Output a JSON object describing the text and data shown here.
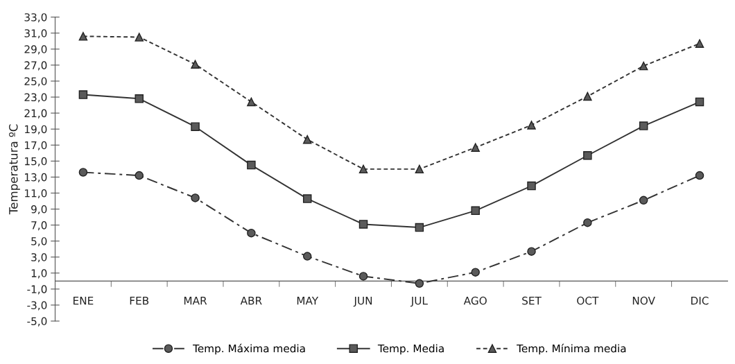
{
  "chart_data": {
    "type": "line",
    "ylabel": "Temperatura ºC",
    "categories": [
      "ENE",
      "FEB",
      "MAR",
      "ABR",
      "MAY",
      "JUN",
      "JUL",
      "AGO",
      "SET",
      "OCT",
      "NOV",
      "DIC"
    ],
    "series": [
      {
        "name": "Temp. Máxima media",
        "color": "#333333",
        "marker": "circle",
        "line_style": "dashdot",
        "values": [
          13.6,
          13.2,
          10.4,
          6.0,
          3.1,
          0.6,
          -0.3,
          1.1,
          3.7,
          7.3,
          10.1,
          13.2
        ]
      },
      {
        "name": "Temp. Media",
        "color": "#333333",
        "marker": "square",
        "line_style": "solid",
        "values": [
          23.3,
          22.8,
          19.3,
          14.5,
          10.3,
          7.1,
          6.7,
          8.8,
          11.9,
          15.7,
          19.4,
          22.4
        ]
      },
      {
        "name": "Temp. Mínima media",
        "color": "#333333",
        "marker": "triangle",
        "line_style": "dashed",
        "values": [
          30.6,
          30.5,
          27.1,
          22.4,
          17.7,
          14.0,
          14.0,
          16.7,
          19.5,
          23.1,
          26.9,
          29.7
        ]
      }
    ],
    "ylim": [
      -5,
      33
    ],
    "yticks": [
      {
        "value": 33,
        "label": "33,0"
      },
      {
        "value": 31,
        "label": "31,0"
      },
      {
        "value": 29,
        "label": "29,0"
      },
      {
        "value": 27,
        "label": "27,0"
      },
      {
        "value": 25,
        "label": "25,0"
      },
      {
        "value": 23,
        "label": "23,0"
      },
      {
        "value": 21,
        "label": "21,0"
      },
      {
        "value": 19,
        "label": "19,0"
      },
      {
        "value": 17,
        "label": "17,0"
      },
      {
        "value": 15,
        "label": "15,0"
      },
      {
        "value": 13,
        "label": "13,0"
      },
      {
        "value": 11,
        "label": "11,0"
      },
      {
        "value": 9,
        "label": "9,0"
      },
      {
        "value": 7,
        "label": "7,0"
      },
      {
        "value": 5,
        "label": "5,0"
      },
      {
        "value": 3,
        "label": "3,0"
      },
      {
        "value": 1,
        "label": "1,0"
      },
      {
        "value": -1,
        "label": "-1,0"
      },
      {
        "value": -3,
        "label": "-3,0"
      },
      {
        "value": -5,
        "label": "-5,0"
      }
    ],
    "grid": false,
    "legend": "bottom"
  }
}
